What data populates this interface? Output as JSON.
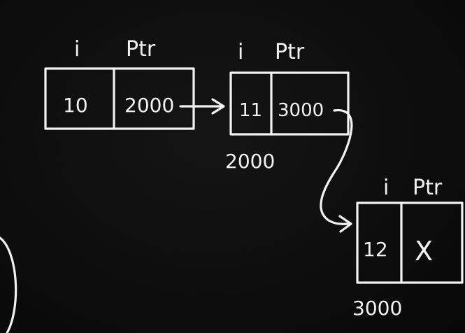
{
  "nodes": [
    {
      "field_label_i": "i",
      "field_label_ptr": "Ptr",
      "i_value": "10",
      "ptr_value": "2000",
      "address": ""
    },
    {
      "field_label_i": "i",
      "field_label_ptr": "Ptr",
      "i_value": "11",
      "ptr_value": "3000",
      "address": "2000"
    },
    {
      "field_label_i": "i",
      "field_label_ptr": "Ptr",
      "i_value": "12",
      "ptr_value": "X",
      "address": "3000"
    }
  ],
  "colors": {
    "background": "#0b0b0b",
    "chalk": "#f2f2f2"
  }
}
